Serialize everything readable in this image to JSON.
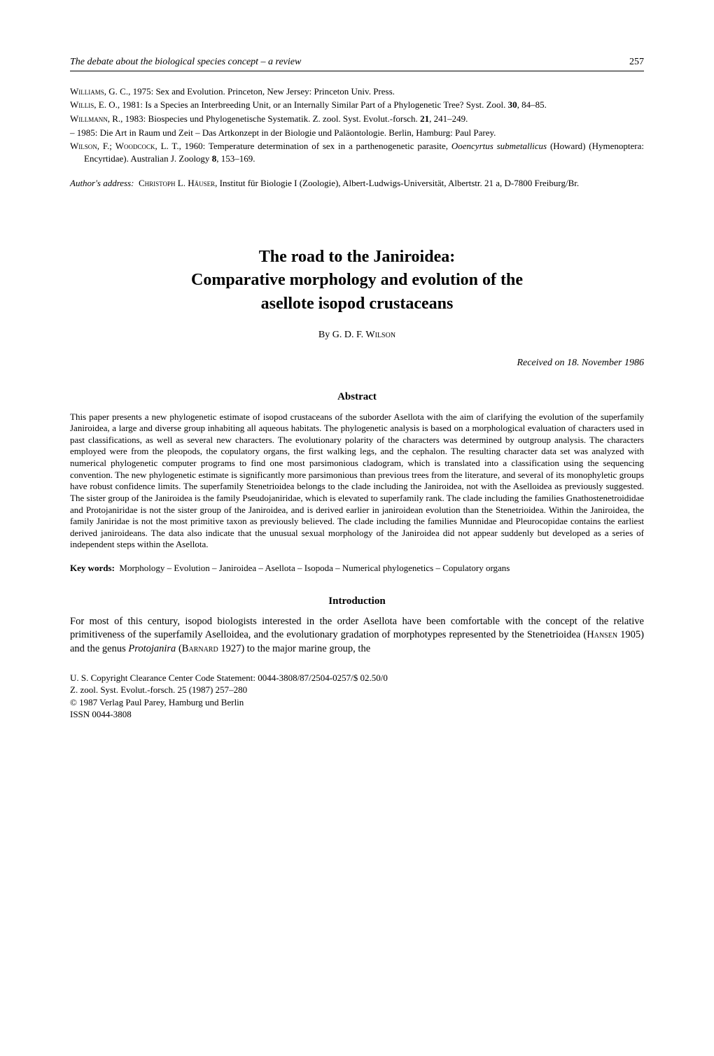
{
  "runningHeader": {
    "title": "The debate about the biological species concept – a review",
    "pageNumber": "257"
  },
  "references": [
    {
      "raw": "Williams, G. C., 1975: Sex and Evolution. Princeton, New Jersey: Princeton Univ. Press."
    },
    {
      "raw": "Willis, E. O., 1981: Is a Species an Interbreeding Unit, or an Internally Similar Part of a Phylogenetic Tree? Syst. Zool. 30, 84–85."
    },
    {
      "raw": "Willmann, R., 1983: Biospecies und Phylogenetische Systematik. Z. zool. Syst. Evolut.-forsch. 21, 241–249."
    },
    {
      "raw": "– 1985: Die Art in Raum und Zeit – Das Artkonzept in der Biologie und Paläontologie. Berlin, Hamburg: Paul Parey."
    },
    {
      "raw": "Wilson, F.; Woodcock, L. T., 1960: Temperature determination of sex in a parthenogenetic parasite, Ooencyrtus submetallicus  (Howard) (Hymenoptera: Encyrtidae). Australian J. Zoology 8, 153–169."
    }
  ],
  "authorAddress": {
    "label": "Author's address:",
    "text": "Christoph L. Häuser, Institut für Biologie I (Zoologie), Albert-Ludwigs-Universität, Albertstr. 21 a, D-7800 Freiburg/Br."
  },
  "article": {
    "titleLine1": "The road to the Janiroidea:",
    "titleLine2": "Comparative morphology and evolution of the",
    "titleLine3": "asellote isopod crustaceans",
    "byPrefix": "By ",
    "author": "G. D. F. Wilson",
    "received": "Received on 18. November 1986",
    "abstractHeading": "Abstract",
    "abstractBody": "This paper presents a new phylogenetic estimate of isopod crustaceans of the suborder Asellota with the aim of clarifying the evolution of the superfamily Janiroidea, a large and diverse group inhabiting all aqueous habitats. The phylogenetic analysis is based on a morphological evaluation of characters used in past classifications, as well as several new characters. The evolutionary polarity of the characters was determined by outgroup analysis. The characters employed were from the pleopods, the copulatory organs, the first walking legs, and the cephalon. The resulting character data set was analyzed with numerical phylogenetic computer programs to find one most parsimonious cladogram, which is translated into a classification using the sequencing convention. The new phylogenetic estimate is significantly more parsimonious than previous trees from the literature, and several of its monophyletic groups have robust confidence limits. The superfamily Stenetrioidea belongs to the clade including the Janiroidea, not with the Aselloidea as previously suggested. The sister group of the Janiroidea is the family Pseudojaniridae, which is elevated to superfamily rank. The clade including the families Gnathostenetroididae and Protojaniridae is not the sister group of the Janiroidea, and is derived earlier in janiroidean evolution than the Stenetrioidea. Within the Janiroidea, the family Janiridae is not the most primitive taxon as previously believed. The clade including the families Munnidae and Pleurocopidae contains the earliest derived janiroideans. The data also indicate that the unusual sexual morphology of the Janiroidea did not appear suddenly but developed as a series of independent steps within the Asellota.",
    "keywordsLabel": "Key words:",
    "keywordsText": "Morphology – Evolution – Janiroidea – Asellota – Isopoda – Numerical phylogenetics – Copulatory organs",
    "introHeading": "Introduction",
    "introBody": "For most of this century, isopod biologists interested in the order Asellota have been comfortable with the concept of the relative primitiveness of the superfamily Aselloidea, and the evolutionary gradation of morphotypes represented by the Stenetrioidea (Hansen 1905) and the genus Protojanira  (Barnard 1927) to the major marine group, the"
  },
  "footer": {
    "line1": "U. S. Copyright Clearance Center Code Statement: 0044-3808/87/2504-0257/$ 02.50/0",
    "line2": "Z. zool. Syst. Evolut.-forsch. 25 (1987) 257–280",
    "line3": "© 1987 Verlag Paul Parey, Hamburg und Berlin",
    "line4": "ISSN 0044-3808"
  }
}
